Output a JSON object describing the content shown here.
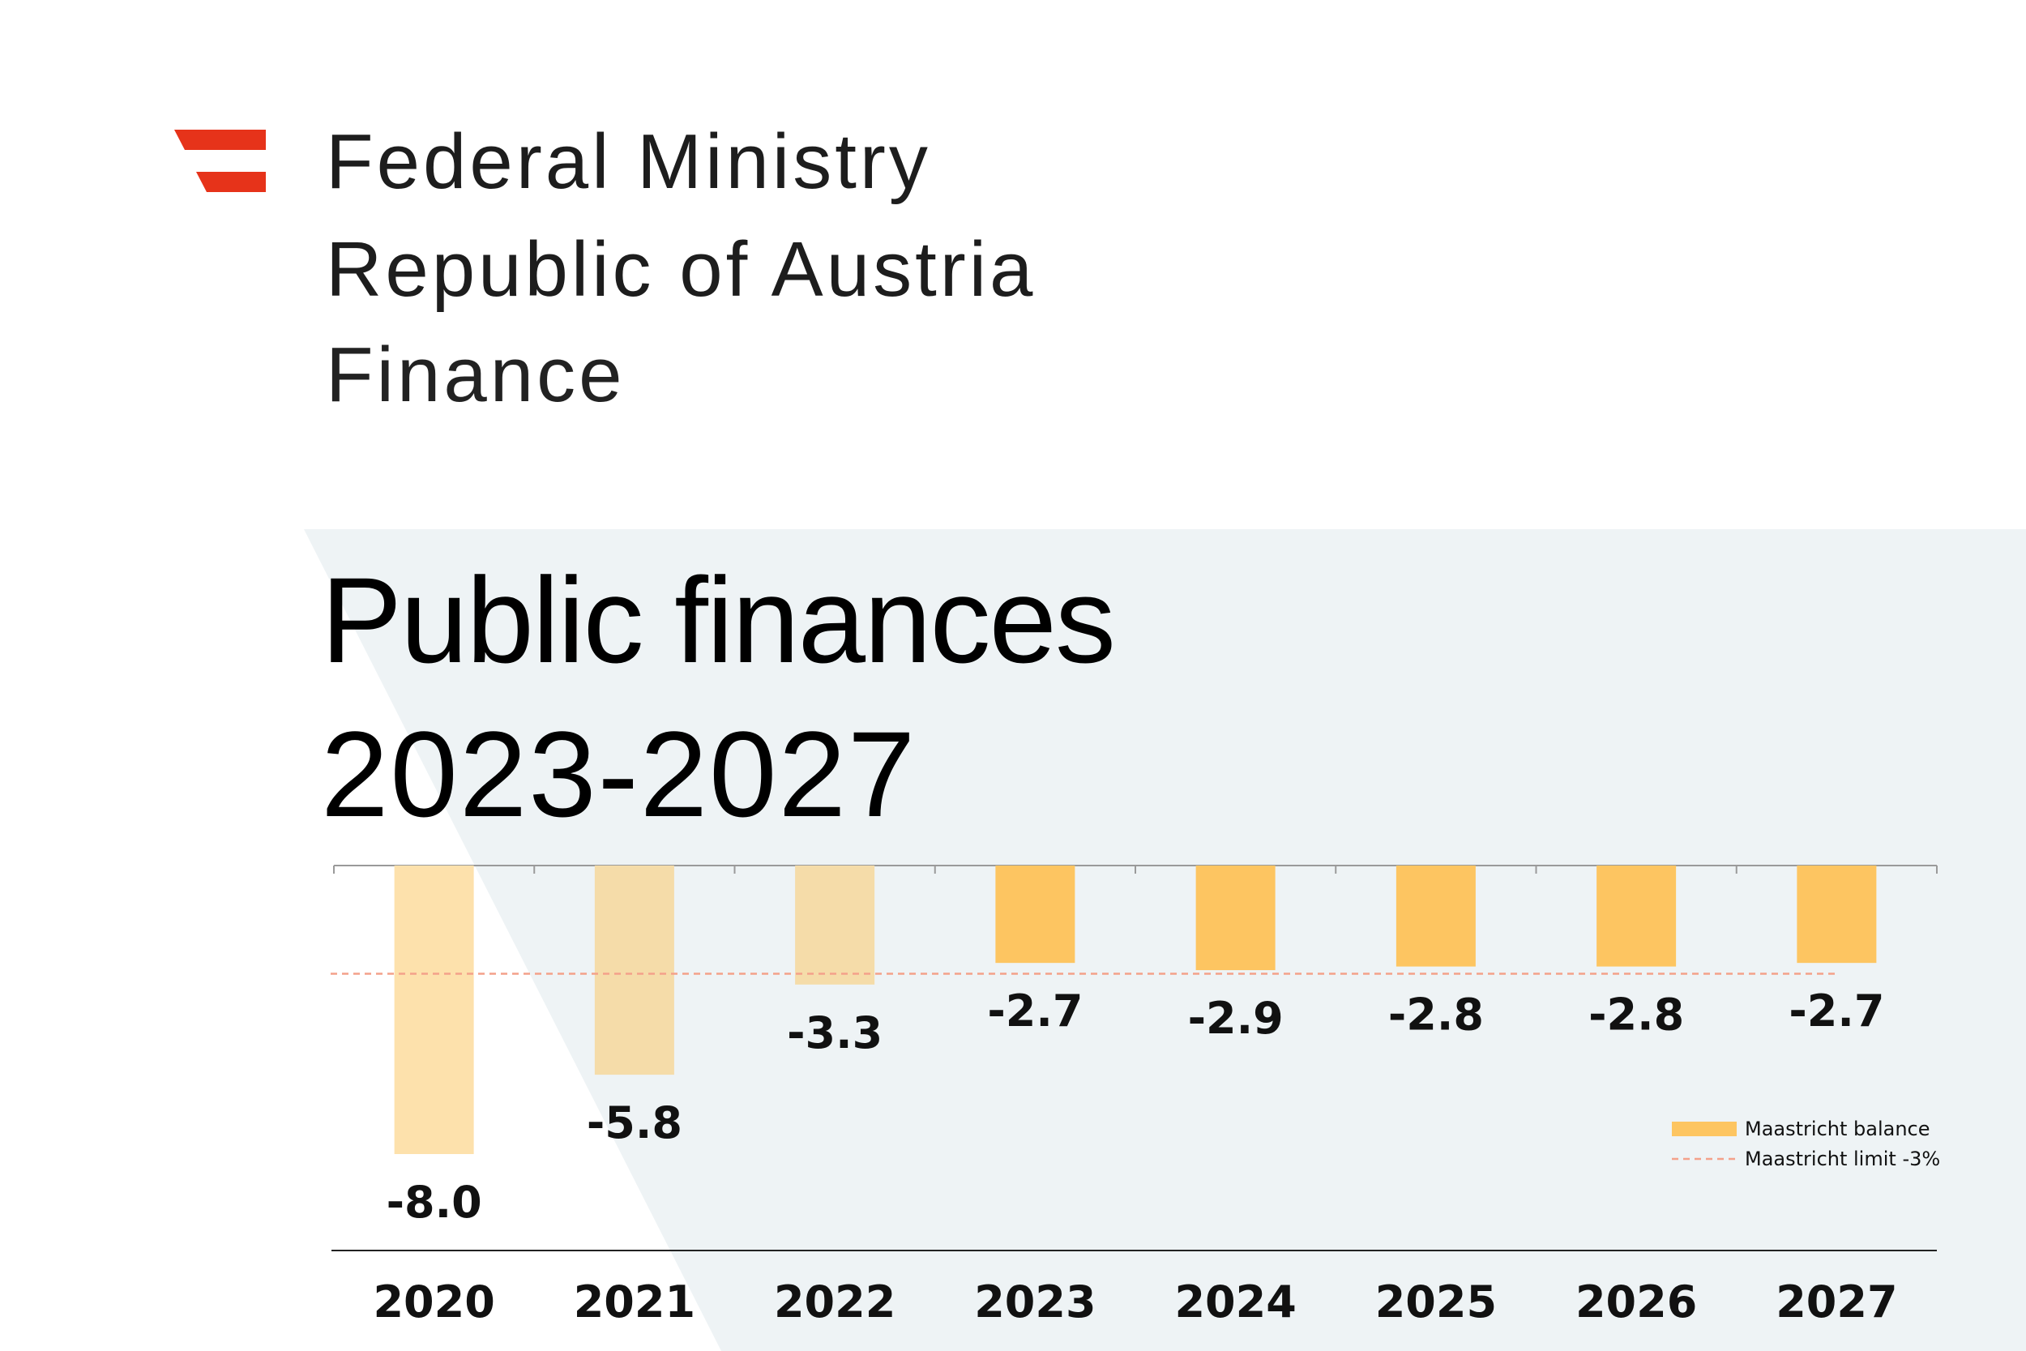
{
  "header": {
    "ministry_line_1": "Federal Ministry",
    "ministry_line_2": "Republic of Austria",
    "ministry_line_3": "Finance",
    "logo_icon": "austria-flag-logo-icon"
  },
  "colors": {
    "logo_red": "#E6331A",
    "bar_actual_2020": "#FDE1AC",
    "bar_actual_2021": "#F5DCA9",
    "bar_actual_2022": "#F5DCA9",
    "bar_forecast": "#FDC561",
    "limit_line": "#F4A18A",
    "background_panel": "#EEF3F5"
  },
  "chart_data": {
    "type": "bar",
    "title": "Public finances",
    "subtitle": "2023-2027",
    "categories": [
      "2020",
      "2021",
      "2022",
      "2023",
      "2024",
      "2025",
      "2026",
      "2027"
    ],
    "series": [
      {
        "name": "Maastricht balance",
        "values": [
          -8.0,
          -5.8,
          -3.3,
          -2.7,
          -2.9,
          -2.8,
          -2.8,
          -2.7
        ]
      }
    ],
    "value_labels": [
      "-8.0",
      "-5.8",
      "-3.3",
      "-2.7",
      "-2.9",
      "-2.8",
      "-2.8",
      "-2.7"
    ],
    "reference_line": {
      "name": "Maastricht limit -3%",
      "value": -3.0,
      "style": "dashed"
    },
    "ylim": [
      -10.7,
      0
    ],
    "grid": false,
    "legend_position": "bottom-right",
    "legend": [
      "Maastricht balance",
      "Maastricht limit -3%"
    ]
  }
}
